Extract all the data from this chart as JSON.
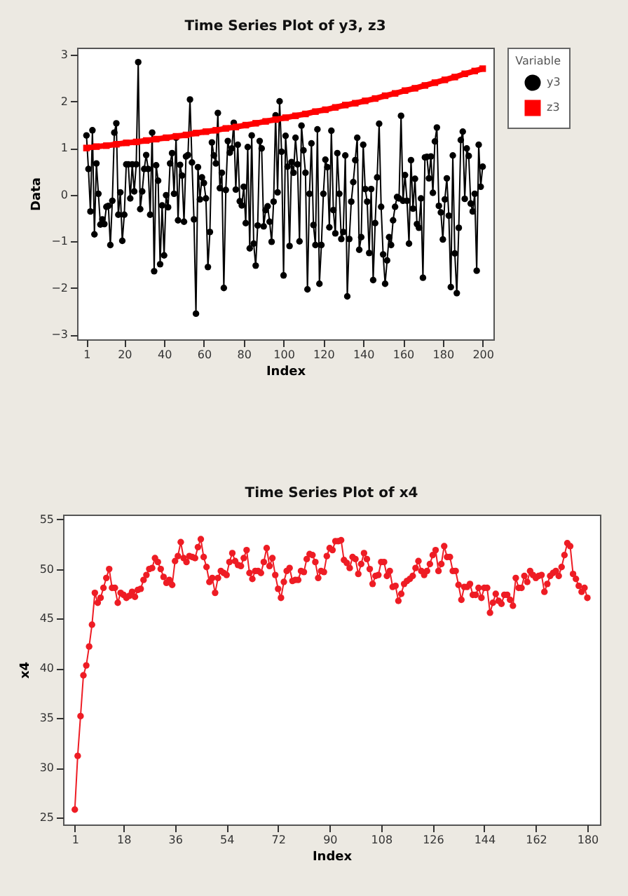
{
  "chart_data": [
    {
      "type": "line",
      "title": "Time Series Plot of y3, z3",
      "xlabel": "Index",
      "ylabel": "Data",
      "legend_title": "Variable",
      "legend": "right",
      "grid": false,
      "x": [
        1,
        2,
        3,
        4,
        5,
        6,
        7,
        8,
        9,
        10,
        11,
        12,
        13,
        14,
        15,
        16,
        17,
        18,
        19,
        20,
        21,
        22,
        23,
        24,
        25,
        26,
        27,
        28,
        29,
        30,
        31,
        32,
        33,
        34,
        35,
        36,
        37,
        38,
        39,
        40,
        41,
        42,
        43,
        44,
        45,
        46,
        47,
        48,
        49,
        50,
        51,
        52,
        53,
        54,
        55,
        56,
        57,
        58,
        59,
        60,
        61,
        62,
        63,
        64,
        65,
        66,
        67,
        68,
        69,
        70,
        71,
        72,
        73,
        74,
        75,
        76,
        77,
        78,
        79,
        80,
        81,
        82,
        83,
        84,
        85,
        86,
        87,
        88,
        89,
        90,
        91,
        92,
        93,
        94,
        95,
        96,
        97,
        98,
        99,
        100,
        101,
        102,
        103,
        104,
        105,
        106,
        107,
        108,
        109,
        110,
        111,
        112,
        113,
        114,
        115,
        116,
        117,
        118,
        119,
        120,
        121,
        122,
        123,
        124,
        125,
        126,
        127,
        128,
        129,
        130,
        131,
        132,
        133,
        134,
        135,
        136,
        137,
        138,
        139,
        140,
        141,
        142,
        143,
        144,
        145,
        146,
        147,
        148,
        149,
        150,
        151,
        152,
        153,
        154,
        155,
        156,
        157,
        158,
        159,
        160,
        161,
        162,
        163,
        164,
        165,
        166,
        167,
        168,
        169,
        170,
        171,
        172,
        173,
        174,
        175,
        176,
        177,
        178,
        179,
        180,
        181,
        182,
        183,
        184,
        185,
        186,
        187,
        188,
        189,
        190,
        191,
        192,
        193,
        194,
        195,
        196,
        197,
        198,
        199,
        200
      ],
      "xlim": [
        -3.7,
        205.4
      ],
      "ylim": [
        -3.1,
        3.15
      ],
      "xticks": [
        1,
        20,
        40,
        60,
        80,
        100,
        120,
        140,
        160,
        180,
        200
      ],
      "yticks": [
        -3,
        -2,
        -1,
        0,
        1,
        2,
        3
      ],
      "series": [
        {
          "name": "y3",
          "color": "#000000",
          "marker": "circle",
          "values": [
            1.27,
            0.55,
            -0.36,
            1.38,
            -0.85,
            0.67,
            0.02,
            -0.64,
            -0.53,
            -0.63,
            -0.26,
            -0.24,
            -1.08,
            -0.13,
            1.33,
            1.53,
            -0.43,
            0.05,
            -0.99,
            -0.43,
            0.65,
            0.65,
            -0.08,
            0.65,
            0.07,
            0.65,
            2.84,
            -0.31,
            0.07,
            0.55,
            0.85,
            0.55,
            -0.43,
            1.33,
            -1.64,
            0.63,
            0.3,
            -1.49,
            -0.23,
            -1.3,
            -0.01,
            -0.27,
            0.67,
            0.89,
            0.02,
            1.22,
            -0.55,
            0.64,
            0.41,
            -0.58,
            0.82,
            0.85,
            2.04,
            0.69,
            -0.53,
            -2.55,
            0.59,
            -0.1,
            0.37,
            0.25,
            -0.08,
            -1.55,
            -0.8,
            1.12,
            0.84,
            0.67,
            1.75,
            0.14,
            0.47,
            -2.0,
            0.1,
            1.15,
            0.9,
            0.99,
            1.54,
            0.11,
            1.07,
            -0.14,
            -0.23,
            0.17,
            -0.61,
            1.02,
            -1.15,
            1.27,
            -1.05,
            -1.52,
            -0.66,
            1.15,
            0.99,
            -0.68,
            -0.33,
            -0.25,
            -0.58,
            -1.01,
            -0.15,
            1.7,
            0.05,
            2.0,
            0.92,
            -1.73,
            1.26,
            0.6,
            -1.1,
            0.7,
            0.47,
            1.22,
            0.65,
            -1.0,
            1.48,
            0.95,
            0.47,
            -2.03,
            0.02,
            1.1,
            -0.65,
            -1.08,
            1.4,
            -1.91,
            -1.08,
            0.02,
            0.75,
            0.59,
            -0.7,
            1.37,
            -0.33,
            -0.83,
            0.89,
            0.02,
            -0.95,
            -0.8,
            0.84,
            -2.18,
            -0.95,
            -0.15,
            0.27,
            0.74,
            1.22,
            -1.18,
            -0.91,
            1.07,
            0.12,
            -0.15,
            -1.25,
            0.12,
            -1.83,
            -0.61,
            0.37,
            1.52,
            -0.26,
            -1.28,
            -1.91,
            -1.41,
            -0.91,
            -1.08,
            -0.55,
            -0.26,
            -0.05,
            -0.08,
            1.69,
            -0.13,
            0.42,
            -0.13,
            -1.05,
            0.74,
            -0.3,
            0.34,
            -0.63,
            -0.71,
            -0.08,
            -1.78,
            0.8,
            0.81,
            0.35,
            0.82,
            0.04,
            1.14,
            1.44,
            -0.24,
            -0.38,
            -0.96,
            -0.1,
            0.35,
            -0.45,
            -1.98,
            0.84,
            -1.26,
            -2.11,
            -0.71,
            1.17,
            1.35,
            -0.09,
            0.99,
            0.83,
            -0.19,
            -0.36,
            0.02,
            -1.63,
            1.07,
            0.17,
            0.6
          ]
        },
        {
          "name": "z3",
          "color": "#ff0000",
          "marker": "square",
          "x": [
            1,
            6,
            11,
            16,
            21,
            26,
            31,
            36,
            41,
            46,
            51,
            56,
            61,
            66,
            71,
            76,
            81,
            86,
            91,
            96,
            101,
            106,
            111,
            116,
            121,
            126,
            131,
            136,
            141,
            146,
            151,
            156,
            161,
            166,
            171,
            176,
            181,
            186,
            191,
            196,
            200
          ],
          "values": [
            1.0,
            1.03,
            1.05,
            1.08,
            1.11,
            1.13,
            1.16,
            1.19,
            1.22,
            1.25,
            1.28,
            1.32,
            1.35,
            1.38,
            1.42,
            1.45,
            1.49,
            1.53,
            1.57,
            1.61,
            1.65,
            1.69,
            1.73,
            1.78,
            1.82,
            1.87,
            1.92,
            1.96,
            2.01,
            2.06,
            2.12,
            2.17,
            2.23,
            2.28,
            2.34,
            2.4,
            2.46,
            2.52,
            2.59,
            2.65,
            2.7
          ]
        }
      ]
    },
    {
      "type": "line",
      "title": "Time Series Plot of x4",
      "xlabel": "Index",
      "ylabel": "x4",
      "grid": false,
      "marker": "circle",
      "x": [
        1,
        2,
        3,
        4,
        5,
        6,
        7,
        8,
        9,
        10,
        11,
        12,
        13,
        14,
        15,
        16,
        17,
        18,
        19,
        20,
        21,
        22,
        23,
        24,
        25,
        26,
        27,
        28,
        29,
        30,
        31,
        32,
        33,
        34,
        35,
        36,
        37,
        38,
        39,
        40,
        41,
        42,
        43,
        44,
        45,
        46,
        47,
        48,
        49,
        50,
        51,
        52,
        53,
        54,
        55,
        56,
        57,
        58,
        59,
        60,
        61,
        62,
        63,
        64,
        65,
        66,
        67,
        68,
        69,
        70,
        71,
        72,
        73,
        74,
        75,
        76,
        77,
        78,
        79,
        80,
        81,
        82,
        83,
        84,
        85,
        86,
        87,
        88,
        89,
        90,
        91,
        92,
        93,
        94,
        95,
        96,
        97,
        98,
        99,
        100,
        101,
        102,
        103,
        104,
        105,
        106,
        107,
        108,
        109,
        110,
        111,
        112,
        113,
        114,
        115,
        116,
        117,
        118,
        119,
        120,
        121,
        122,
        123,
        124,
        125,
        126,
        127,
        128,
        129,
        130,
        131,
        132,
        133,
        134,
        135,
        136,
        137,
        138,
        139,
        140,
        141,
        142,
        143,
        144,
        145,
        146,
        147,
        148,
        149,
        150,
        151,
        152,
        153,
        154,
        155,
        156,
        157,
        158,
        159,
        160,
        161,
        162,
        163,
        164,
        165,
        166,
        167,
        168,
        169,
        170,
        171,
        172,
        173,
        174,
        175,
        176,
        177,
        178,
        179,
        180
      ],
      "xlim": [
        -3.1,
        184.4
      ],
      "ylim": [
        24.3,
        55.47
      ],
      "xticks": [
        1,
        18,
        36,
        54,
        72,
        90,
        108,
        126,
        144,
        162,
        180
      ],
      "yticks": [
        25,
        30,
        35,
        40,
        45,
        50,
        55
      ],
      "series": [
        {
          "color": "#ee1c24",
          "values": [
            25.8,
            31.2,
            35.2,
            39.3,
            40.3,
            42.2,
            44.4,
            47.6,
            46.6,
            47.1,
            48.1,
            49.1,
            50.0,
            48.1,
            48.1,
            46.6,
            47.6,
            47.4,
            47.1,
            47.3,
            47.7,
            47.2,
            47.9,
            48.0,
            48.9,
            49.4,
            50.0,
            50.1,
            51.1,
            50.7,
            50.0,
            49.2,
            48.6,
            48.9,
            48.4,
            50.8,
            51.3,
            52.7,
            51.1,
            50.7,
            51.3,
            51.2,
            51.1,
            52.2,
            53.0,
            51.2,
            50.2,
            48.7,
            49.1,
            47.6,
            49.1,
            49.8,
            49.6,
            49.4,
            50.7,
            51.6,
            50.8,
            50.4,
            50.3,
            51.1,
            51.9,
            49.6,
            49.0,
            49.8,
            49.8,
            49.6,
            50.7,
            52.1,
            50.3,
            51.1,
            49.4,
            48.0,
            47.1,
            48.7,
            49.8,
            50.1,
            48.8,
            48.9,
            48.9,
            49.8,
            49.7,
            51.0,
            51.5,
            51.4,
            50.7,
            49.1,
            49.8,
            49.7,
            51.3,
            52.1,
            51.9,
            52.8,
            52.8,
            52.9,
            50.9,
            50.6,
            50.1,
            51.2,
            51.0,
            49.5,
            50.5,
            51.6,
            51.0,
            50.0,
            48.5,
            49.3,
            49.4,
            50.7,
            50.7,
            49.3,
            49.8,
            48.2,
            48.3,
            46.8,
            47.5,
            48.5,
            48.8,
            49.0,
            49.3,
            50.1,
            50.8,
            49.8,
            49.4,
            49.8,
            50.5,
            51.4,
            51.9,
            49.8,
            50.5,
            52.3,
            51.2,
            51.2,
            49.8,
            49.8,
            48.4,
            46.9,
            48.2,
            48.2,
            48.5,
            47.4,
            47.4,
            48.1,
            47.1,
            48.1,
            48.1,
            45.6,
            46.6,
            47.5,
            46.8,
            46.5,
            47.4,
            47.4,
            46.9,
            46.3,
            49.1,
            48.1,
            48.1,
            49.3,
            48.7,
            49.8,
            49.4,
            49.1,
            49.3,
            49.4,
            47.7,
            48.5,
            49.3,
            49.6,
            49.8,
            49.3,
            50.2,
            51.4,
            52.6,
            52.3,
            49.5,
            49.0,
            48.3,
            47.7,
            48.1,
            47.1
          ]
        }
      ]
    }
  ]
}
